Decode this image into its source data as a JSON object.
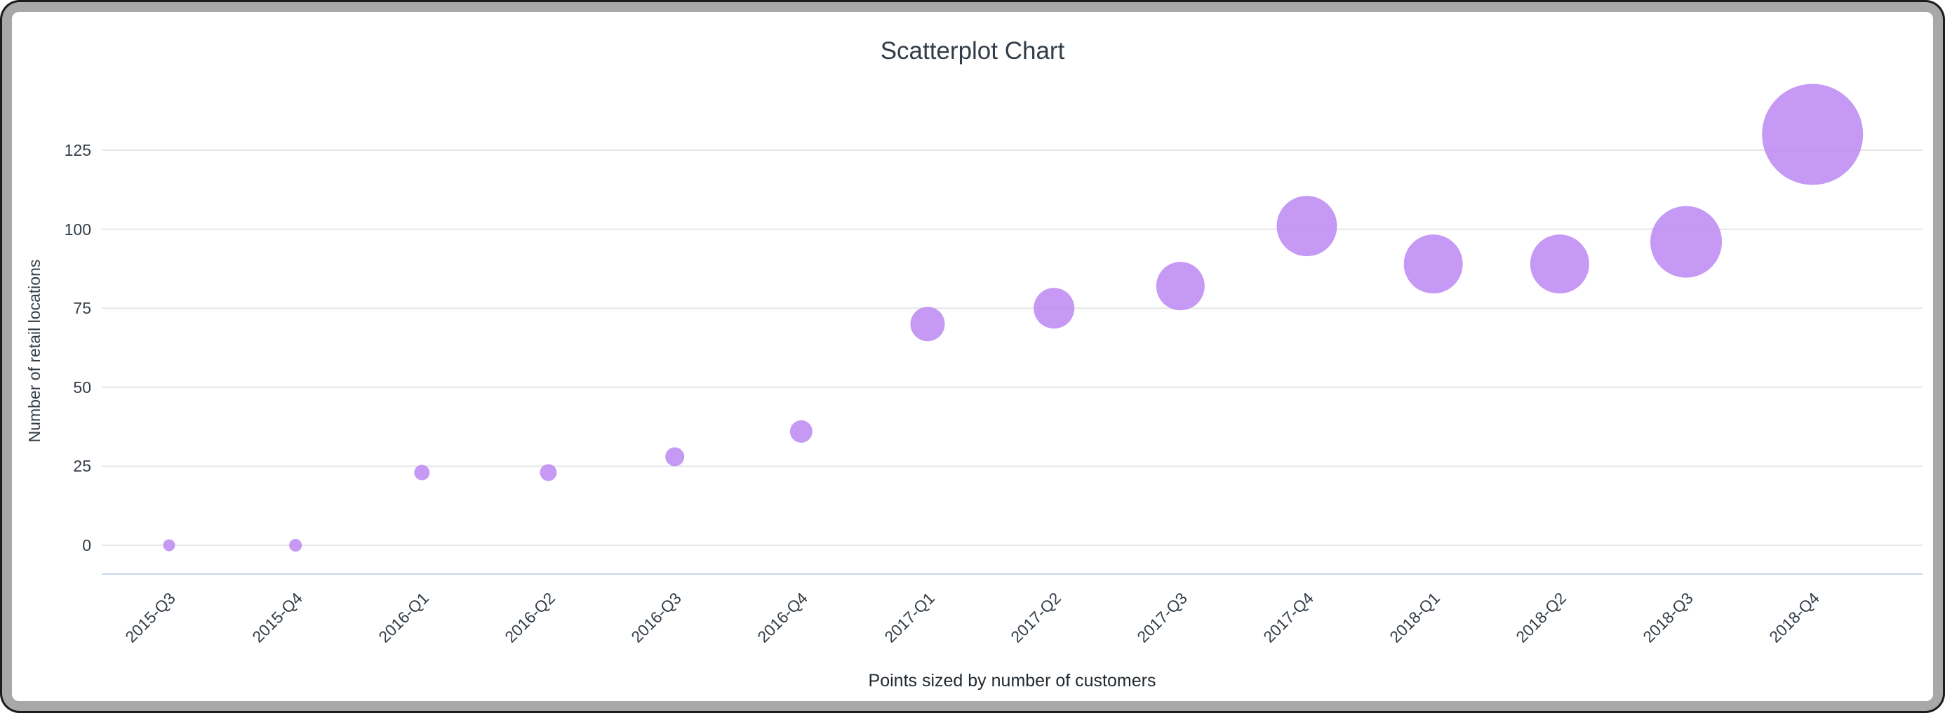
{
  "chart_data": {
    "type": "scatter",
    "title": "Scatterplot Chart",
    "xlabel": "Points sized by number of customers",
    "ylabel": "Number of retail locations",
    "categories": [
      "2015-Q3",
      "2015-Q4",
      "2016-Q1",
      "2016-Q2",
      "2016-Q3",
      "2016-Q4",
      "2017-Q1",
      "2017-Q2",
      "2017-Q3",
      "2017-Q4",
      "2018-Q1",
      "2018-Q2",
      "2018-Q3",
      "2018-Q4"
    ],
    "values": [
      0,
      0,
      23,
      23,
      28,
      36,
      70,
      75,
      82,
      101,
      89,
      89,
      96,
      130
    ],
    "bubble_radius_px": [
      8.5,
      9,
      11,
      12,
      13.5,
      16,
      24.5,
      29,
      34.5,
      43,
      42,
      42,
      51,
      72
    ],
    "sized_by": "number of customers",
    "y_ticks": [
      0,
      25,
      50,
      75,
      100,
      125
    ],
    "ylim": [
      -9,
      150
    ],
    "grid": true,
    "legend": false
  },
  "colors": {
    "marker": "#bc87f3",
    "marker_opacity": 0.85,
    "gridline": "#e6e6e6",
    "axis_line": "#ccd6eb",
    "text": "#333d47",
    "frame": "#a8a8a8",
    "frame_outline": "#1c1c1c",
    "background": "#ffffff"
  }
}
